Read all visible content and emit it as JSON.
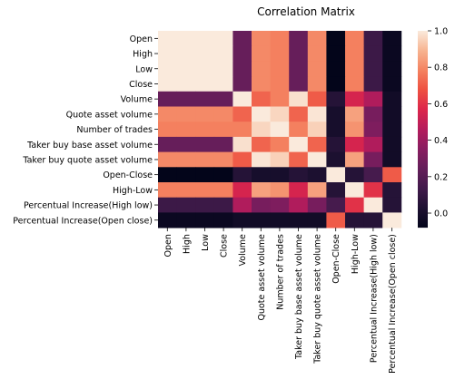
{
  "chart_data": {
    "type": "heatmap",
    "title": "Correlation Matrix",
    "labels": [
      "Open",
      "High",
      "Low",
      "Close",
      "Volume",
      "Quote asset volume",
      "Number of trades",
      "Taker buy base asset volume",
      "Taker buy quote asset volume",
      "Open-Close",
      "High-Low",
      "Percentual Increase(High low)",
      "Percentual Increase(Open close)"
    ],
    "values": [
      [
        1.0,
        1.0,
        1.0,
        1.0,
        0.25,
        0.8,
        0.78,
        0.25,
        0.8,
        -0.08,
        0.78,
        0.12,
        -0.05
      ],
      [
        1.0,
        1.0,
        1.0,
        1.0,
        0.25,
        0.8,
        0.78,
        0.25,
        0.8,
        -0.08,
        0.78,
        0.12,
        -0.05
      ],
      [
        1.0,
        1.0,
        1.0,
        1.0,
        0.25,
        0.8,
        0.78,
        0.25,
        0.8,
        -0.08,
        0.78,
        0.12,
        -0.05
      ],
      [
        1.0,
        1.0,
        1.0,
        1.0,
        0.25,
        0.8,
        0.78,
        0.25,
        0.8,
        -0.08,
        0.78,
        0.12,
        -0.05
      ],
      [
        0.25,
        0.25,
        0.25,
        0.25,
        1.0,
        0.72,
        0.78,
        0.98,
        0.7,
        0.05,
        0.55,
        0.45,
        -0.02
      ],
      [
        0.8,
        0.8,
        0.8,
        0.8,
        0.72,
        1.0,
        0.96,
        0.72,
        0.99,
        0.0,
        0.85,
        0.3,
        -0.02
      ],
      [
        0.78,
        0.78,
        0.78,
        0.78,
        0.78,
        0.96,
        1.0,
        0.78,
        0.95,
        0.0,
        0.82,
        0.32,
        -0.02
      ],
      [
        0.25,
        0.25,
        0.25,
        0.25,
        0.98,
        0.72,
        0.78,
        1.0,
        0.72,
        0.05,
        0.55,
        0.45,
        -0.02
      ],
      [
        0.8,
        0.8,
        0.8,
        0.8,
        0.7,
        0.99,
        0.95,
        0.72,
        1.0,
        0.02,
        0.85,
        0.3,
        -0.02
      ],
      [
        -0.08,
        -0.08,
        -0.08,
        -0.08,
        0.05,
        0.0,
        0.0,
        0.05,
        0.02,
        1.0,
        0.05,
        0.15,
        0.7
      ],
      [
        0.78,
        0.78,
        0.78,
        0.78,
        0.55,
        0.85,
        0.82,
        0.55,
        0.85,
        0.05,
        1.0,
        0.6,
        0.05
      ],
      [
        0.12,
        0.12,
        0.12,
        0.12,
        0.45,
        0.3,
        0.32,
        0.45,
        0.3,
        0.15,
        0.6,
        1.0,
        0.05
      ],
      [
        -0.05,
        -0.05,
        -0.05,
        -0.05,
        -0.02,
        -0.02,
        -0.02,
        -0.02,
        -0.02,
        0.7,
        0.05,
        0.05,
        1.0
      ]
    ],
    "colorbar": {
      "min": -0.08,
      "max": 1.0,
      "ticks": [
        0.0,
        0.2,
        0.4,
        0.6,
        0.8,
        1.0
      ],
      "tick_labels": [
        "0.0",
        "0.2",
        "0.4",
        "0.6",
        "0.8",
        "1.0"
      ],
      "colormap": "rocket"
    },
    "grid": false
  }
}
